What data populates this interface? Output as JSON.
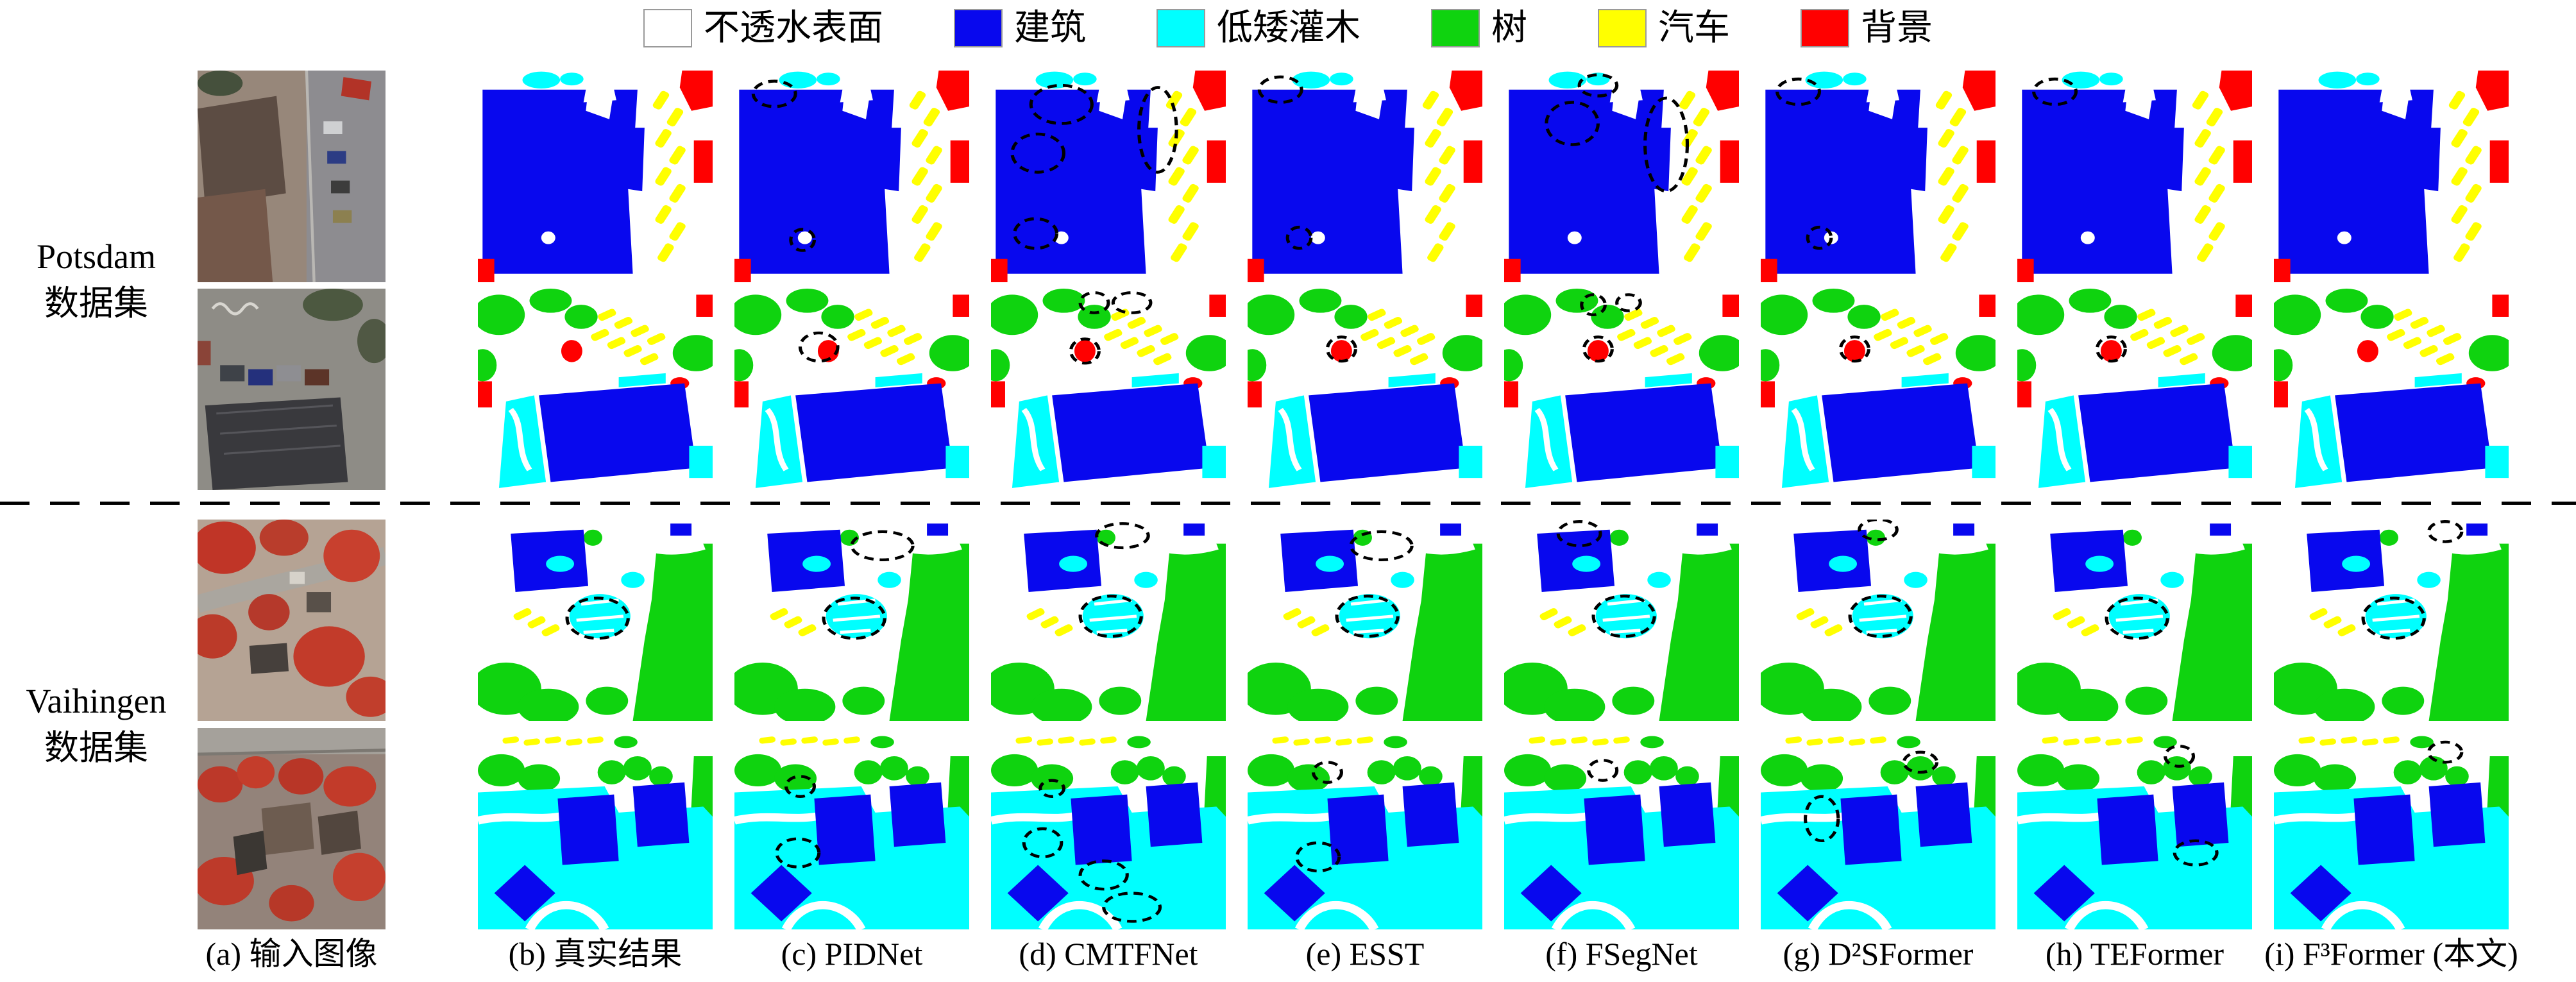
{
  "palette": {
    "white": "#ffffff",
    "blue": "#0808ee",
    "cyan": "#00ffff",
    "green": "#0fd30f",
    "yellow": "#ffff00",
    "red": "#ff0000"
  },
  "legend": {
    "items": [
      {
        "name": "impervious-surface",
        "label": "不透水表面",
        "color": "#ffffff"
      },
      {
        "name": "building",
        "label": "建筑",
        "color": "#0808ee"
      },
      {
        "name": "low-shrub",
        "label": "低矮灌木",
        "color": "#00ffff"
      },
      {
        "name": "tree",
        "label": "树",
        "color": "#0fd30f"
      },
      {
        "name": "car",
        "label": "汽车",
        "color": "#ffff00"
      },
      {
        "name": "background",
        "label": "背景",
        "color": "#ff0000"
      }
    ]
  },
  "row_groups": [
    {
      "name": "potsdam",
      "lines": [
        "Potsdam",
        "数据集"
      ],
      "row_span": [
        0,
        1
      ]
    },
    {
      "name": "vaihingen",
      "lines": [
        "Vaihingen",
        "数据集"
      ],
      "row_span": [
        2,
        3
      ]
    }
  ],
  "columns": [
    {
      "caption": "(a) 输入图像"
    },
    {
      "caption": "(b) 真实结果"
    },
    {
      "caption": "(c) PIDNet"
    },
    {
      "caption": "(d) CMTFNet"
    },
    {
      "caption": "(e) ESST"
    },
    {
      "caption": "(f) FSegNet"
    },
    {
      "caption": "(g) D²SFormer"
    },
    {
      "caption": "(h) TEFormer"
    },
    {
      "caption": "(i) F³Former (本文)"
    }
  ],
  "grid": {
    "rows": [
      {
        "name": "potsdam-row-1",
        "scene": "potsdam1",
        "annotations": {
          "2": [
            [
              17,
              11,
              9,
              6
            ],
            [
              29,
              80,
              5,
              5
            ]
          ],
          "3": [
            [
              30,
              16,
              13,
              9
            ],
            [
              20,
              39,
              11,
              9
            ],
            [
              71,
              28,
              8,
              20
            ],
            [
              19,
              77,
              9,
              7
            ]
          ],
          "4": [
            [
              14,
              9,
              9,
              6
            ],
            [
              22,
              79,
              5,
              5
            ]
          ],
          "5": [
            [
              29,
              25,
              11,
              10
            ],
            [
              69,
              35,
              9,
              22
            ],
            [
              40,
              7,
              8,
              5
            ]
          ],
          "6": [
            [
              16,
              10,
              9,
              6
            ],
            [
              25,
              79,
              5,
              5
            ]
          ],
          "7": [
            [
              16,
              10,
              9,
              6
            ]
          ],
          "8": []
        }
      },
      {
        "name": "potsdam-row-2",
        "scene": "potsdam2",
        "annotations": {
          "2": [
            [
              36,
              29,
              8,
              7
            ]
          ],
          "3": [
            [
              44,
              7,
              6,
              5
            ],
            [
              60,
              7,
              8,
              5
            ],
            [
              40,
              31,
              6,
              6
            ]
          ],
          "4": [
            [
              40,
              30,
              6,
              6
            ]
          ],
          "5": [
            [
              38,
              8,
              5,
              5
            ],
            [
              53,
              7,
              5,
              4
            ],
            [
              40,
              30,
              6,
              6
            ]
          ],
          "6": [
            [
              40,
              30,
              6,
              6
            ]
          ],
          "7": [
            [
              40,
              30,
              6,
              6
            ]
          ],
          "8": []
        }
      },
      {
        "name": "vaihingen-row-1",
        "scene": "vaihingen1",
        "annotations": {
          "1": [
            [
              51,
              49,
              13,
              10
            ]
          ],
          "2": [
            [
              51,
              49,
              13,
              10
            ],
            [
              63,
              13,
              13,
              7
            ]
          ],
          "3": [
            [
              51,
              48,
              13,
              10
            ],
            [
              56,
              8,
              11,
              6
            ]
          ],
          "4": [
            [
              51,
              48,
              13,
              10
            ],
            [
              57,
              13,
              13,
              7
            ]
          ],
          "5": [
            [
              51,
              48,
              13,
              10
            ],
            [
              32,
              7,
              9,
              6
            ]
          ],
          "6": [
            [
              51,
              48,
              13,
              10
            ],
            [
              50,
              5,
              8,
              5
            ]
          ],
          "7": [
            [
              51,
              49,
              13,
              10
            ]
          ],
          "8": [
            [
              51,
              49,
              13,
              10
            ],
            [
              73,
              6,
              7,
              5
            ]
          ]
        }
      },
      {
        "name": "vaihingen-row-2",
        "scene": "vaihingen2",
        "annotations": {
          "2": [
            [
              28,
              29,
              6,
              5
            ],
            [
              27,
              62,
              9,
              7
            ]
          ],
          "3": [
            [
              22,
              57,
              8,
              7
            ],
            [
              48,
              73,
              10,
              7
            ],
            [
              60,
              89,
              12,
              7
            ],
            [
              26,
              30,
              5,
              4
            ]
          ],
          "4": [
            [
              34,
              22,
              6,
              5
            ],
            [
              30,
              64,
              9,
              7
            ]
          ],
          "5": [
            [
              42,
              21,
              6,
              5
            ]
          ],
          "6": [
            [
              26,
              45,
              7,
              11
            ],
            [
              68,
              17,
              7,
              5
            ]
          ],
          "7": [
            [
              76,
              62,
              9,
              6
            ],
            [
              69,
              14,
              6,
              5
            ]
          ],
          "8": [
            [
              73,
              12,
              7,
              5
            ]
          ]
        }
      }
    ]
  }
}
